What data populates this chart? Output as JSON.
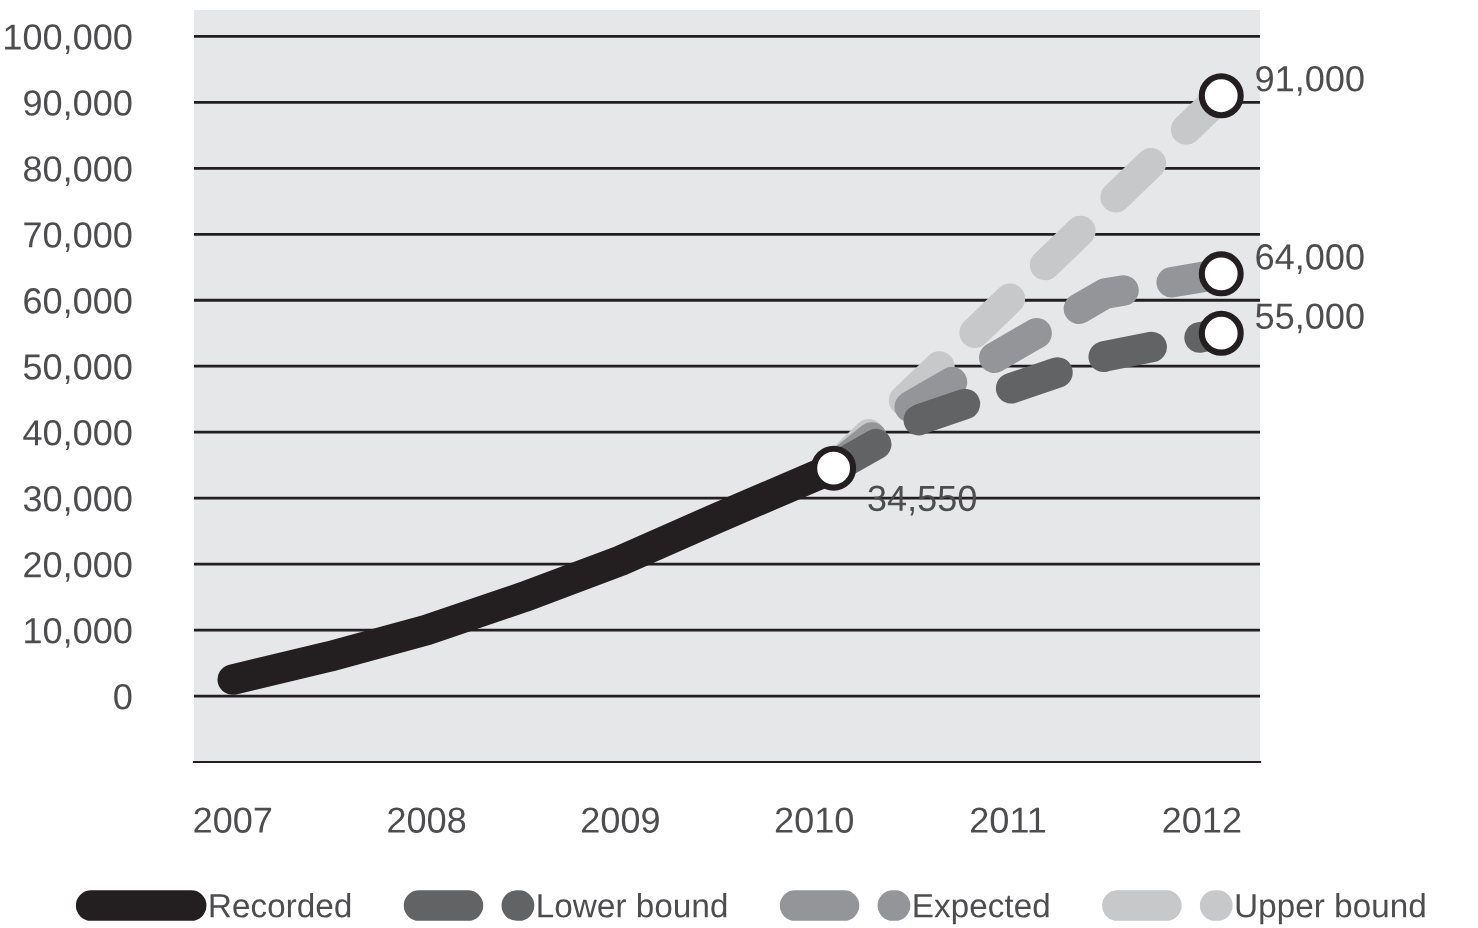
{
  "chart_data": {
    "type": "line",
    "x": [
      2007,
      2007.5,
      2008,
      2008.5,
      2009,
      2009.5,
      2010.1
    ],
    "series": [
      {
        "name": "Recorded",
        "color": "#231f20",
        "line_style": "solid",
        "values": [
          2500,
          6000,
          10000,
          15000,
          20500,
          27000,
          34550
        ],
        "value_labels": [
          null,
          null,
          null,
          null,
          null,
          null,
          "34,550"
        ]
      },
      {
        "name": "Lower bound",
        "color": "#626365",
        "line_style": "dashed",
        "x": [
          2010.1,
          2010.55,
          2011.5,
          2012.1
        ],
        "values": [
          34550,
          42000,
          51500,
          55000
        ],
        "value_labels": [
          null,
          null,
          null,
          "55,000"
        ]
      },
      {
        "name": "Expected",
        "color": "#939598",
        "line_style": "dashed",
        "x": [
          2010.1,
          2010.5,
          2011.5,
          2012.1
        ],
        "values": [
          34550,
          44000,
          61000,
          64000
        ],
        "value_labels": [
          null,
          null,
          null,
          "64,000"
        ]
      },
      {
        "name": "Upper bound",
        "color": "#c7c8ca",
        "line_style": "dashed",
        "x": [
          2010.1,
          2012.1
        ],
        "values": [
          34550,
          91000
        ],
        "value_labels": [
          null,
          "91,000"
        ]
      }
    ],
    "xlim": [
      2006.8,
      2012.3
    ],
    "xticks": [
      2007,
      2008,
      2009,
      2010,
      2011,
      2012
    ],
    "ylim": [
      -10000,
      104000
    ],
    "yticks": [
      {
        "value": 0,
        "label": "0"
      },
      {
        "value": 10000,
        "label": "10,000"
      },
      {
        "value": 20000,
        "label": "20,000"
      },
      {
        "value": 30000,
        "label": "30,000"
      },
      {
        "value": 40000,
        "label": "40,000"
      },
      {
        "value": 50000,
        "label": "50,000"
      },
      {
        "value": 60000,
        "label": "60,000"
      },
      {
        "value": 70000,
        "label": "70,000"
      },
      {
        "value": 80000,
        "label": "80,000"
      },
      {
        "value": 90000,
        "label": "90,000"
      },
      {
        "value": 100000,
        "label": "100,000"
      }
    ],
    "grid": "y",
    "legend": "bottom"
  }
}
